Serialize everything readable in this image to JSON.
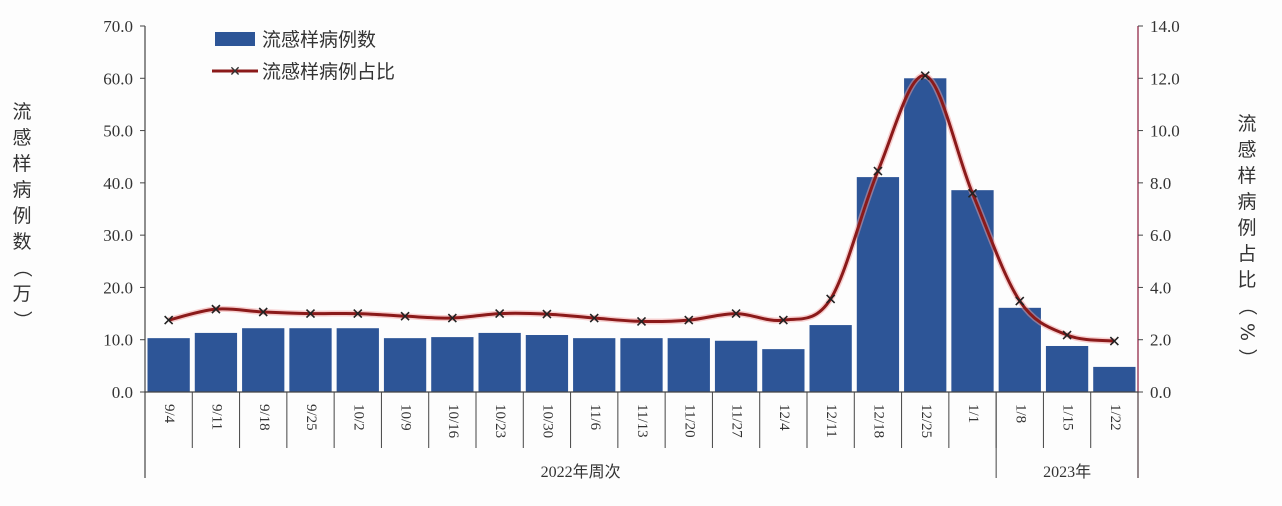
{
  "chart_data": {
    "type": "bar",
    "categories": [
      "9/4",
      "9/11",
      "9/18",
      "9/25",
      "10/2",
      "10/9",
      "10/16",
      "10/23",
      "10/30",
      "11/6",
      "11/13",
      "11/20",
      "11/27",
      "12/4",
      "12/11",
      "12/18",
      "12/25",
      "1/1",
      "1/8",
      "1/15",
      "1/22"
    ],
    "series": [
      {
        "name": "流感样病例数",
        "type": "bar",
        "axis": "left",
        "color": "#2d5597",
        "values": [
          10.3,
          11.3,
          12.2,
          12.2,
          12.2,
          10.3,
          10.5,
          11.3,
          10.9,
          10.3,
          10.3,
          10.3,
          9.8,
          8.2,
          12.8,
          41.1,
          60.0,
          38.6,
          16.1,
          8.8,
          4.8
        ]
      },
      {
        "name": "流感样病例占比",
        "type": "line",
        "axis": "right",
        "color": "#8b1a1a",
        "values": [
          2.75,
          3.17,
          3.06,
          3.0,
          3.0,
          2.9,
          2.83,
          3.0,
          2.98,
          2.83,
          2.7,
          2.75,
          3.0,
          2.75,
          3.56,
          8.45,
          12.1,
          7.6,
          3.48,
          2.18,
          1.95
        ]
      }
    ],
    "ylabel": "流感样病例数（万）",
    "y2label": "流感样病例占比（%）",
    "ylim": [
      0,
      70
    ],
    "y2lim": [
      0,
      14
    ],
    "yticks": [
      "0.0",
      "10.0",
      "20.0",
      "30.0",
      "40.0",
      "50.0",
      "60.0",
      "70.0"
    ],
    "y2ticks": [
      "0.0",
      "2.0",
      "4.0",
      "6.0",
      "8.0",
      "10.0",
      "12.0",
      "14.0"
    ],
    "groups": [
      {
        "label": "2022年周次",
        "count": 18
      },
      {
        "label": "2023年",
        "count": 3
      }
    ],
    "legend": "top-left",
    "grid": false
  }
}
